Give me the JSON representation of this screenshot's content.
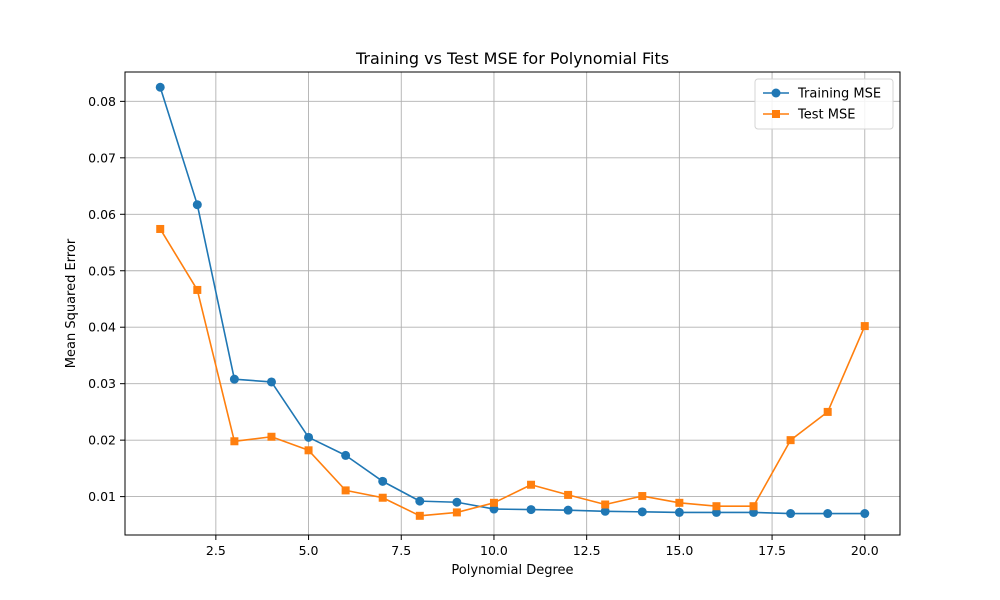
{
  "chart_data": {
    "type": "line",
    "title": "Training vs Test MSE for Polynomial Fits",
    "xlabel": "Polynomial Degree",
    "ylabel": "Mean Squared Error",
    "x": [
      1,
      2,
      3,
      4,
      5,
      6,
      7,
      8,
      9,
      10,
      11,
      12,
      13,
      14,
      15,
      16,
      17,
      18,
      19,
      20
    ],
    "xlim": [
      0.05,
      20.95
    ],
    "ylim": [
      0.0032,
      0.0852
    ],
    "xticks": [
      2.5,
      5.0,
      7.5,
      10.0,
      12.5,
      15.0,
      17.5,
      20.0
    ],
    "xtick_labels": [
      "2.5",
      "5.0",
      "7.5",
      "10.0",
      "12.5",
      "15.0",
      "17.5",
      "20.0"
    ],
    "yticks": [
      0.01,
      0.02,
      0.03,
      0.04,
      0.05,
      0.06,
      0.07,
      0.08
    ],
    "ytick_labels": [
      "0.01",
      "0.02",
      "0.03",
      "0.04",
      "0.05",
      "0.06",
      "0.07",
      "0.08"
    ],
    "grid": true,
    "legend_position": "top-right",
    "series": [
      {
        "name": "Training MSE",
        "color": "#1f77b4",
        "marker": "circle",
        "values": [
          0.0825,
          0.0617,
          0.0308,
          0.0303,
          0.0205,
          0.0173,
          0.0127,
          0.0092,
          0.009,
          0.0078,
          0.0077,
          0.0076,
          0.0074,
          0.0073,
          0.0072,
          0.0072,
          0.0072,
          0.007,
          0.007,
          0.007
        ]
      },
      {
        "name": "Test MSE",
        "color": "#ff7f0e",
        "marker": "square",
        "values": [
          0.0574,
          0.0466,
          0.0198,
          0.0206,
          0.0182,
          0.0111,
          0.0098,
          0.0066,
          0.0072,
          0.0089,
          0.0121,
          0.0103,
          0.0086,
          0.0101,
          0.0089,
          0.0083,
          0.0083,
          0.02,
          0.025,
          0.0402
        ]
      }
    ]
  }
}
